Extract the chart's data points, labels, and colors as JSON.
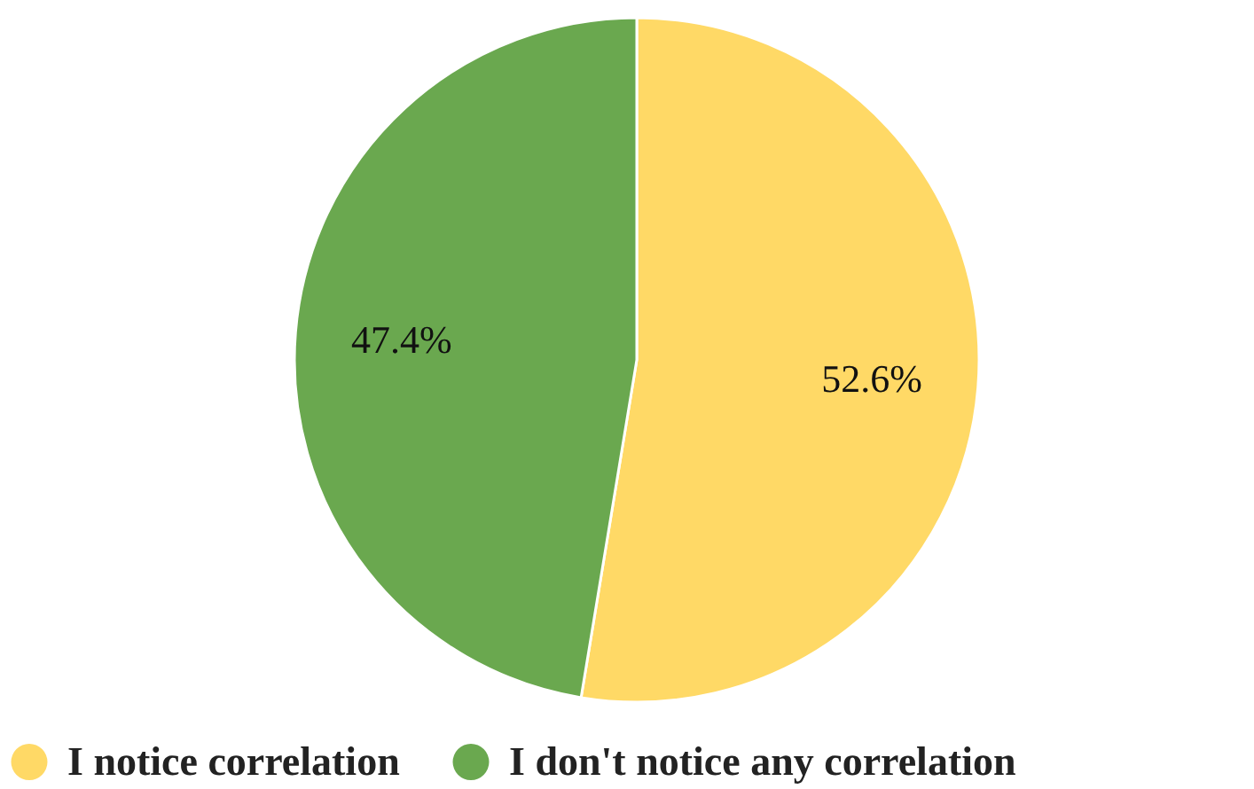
{
  "chart_data": {
    "type": "pie",
    "categories": [
      "I notice correlation",
      "I don't notice any correlation"
    ],
    "values": [
      52.6,
      47.4
    ],
    "colors": [
      "#ffd966",
      "#6aa84f"
    ],
    "value_labels": [
      "52.6%",
      "47.4%"
    ],
    "legend": "bottom"
  }
}
